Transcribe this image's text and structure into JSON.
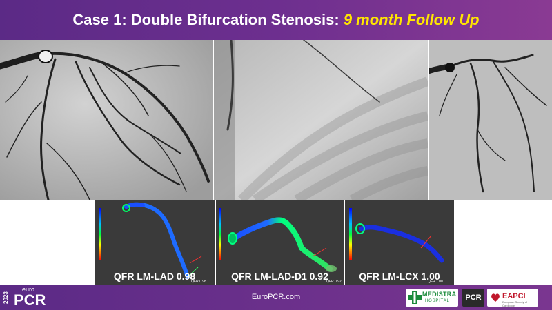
{
  "header": {
    "title": "Case 1: Double Bifurcation Stenosis:",
    "highlight": "9 month Follow Up"
  },
  "angiograms": [
    {
      "name": "angiogram-1"
    },
    {
      "name": "angiogram-2"
    },
    {
      "name": "angiogram-3"
    }
  ],
  "qfr_panels": [
    {
      "label": "QFR LM-LAD 0.98",
      "tip_value": "QFR 0.98"
    },
    {
      "label": "QFR LM-LAD-D1 0.92",
      "tip_value": "QFR 0.92"
    },
    {
      "label": "QFR LM-LCX 1.00",
      "tip_value": "QFR 1.00"
    }
  ],
  "footer": {
    "year": "2023",
    "brand_small": "euro",
    "brand_big": "PCR",
    "url": "EuroPCR.com",
    "medistra_name": "MEDISTRA",
    "medistra_sub": "HOSPITAL",
    "pcr_logo": "PCR",
    "eapci_name": "EAPCI",
    "eapci_sub": "European Society of Cardiology"
  },
  "colors": {
    "header_bg": "#6d2f8f",
    "highlight": "#ffe600",
    "footer_bg": "#5b2a86",
    "qfr_panel_bg": "#3a3a3a"
  }
}
